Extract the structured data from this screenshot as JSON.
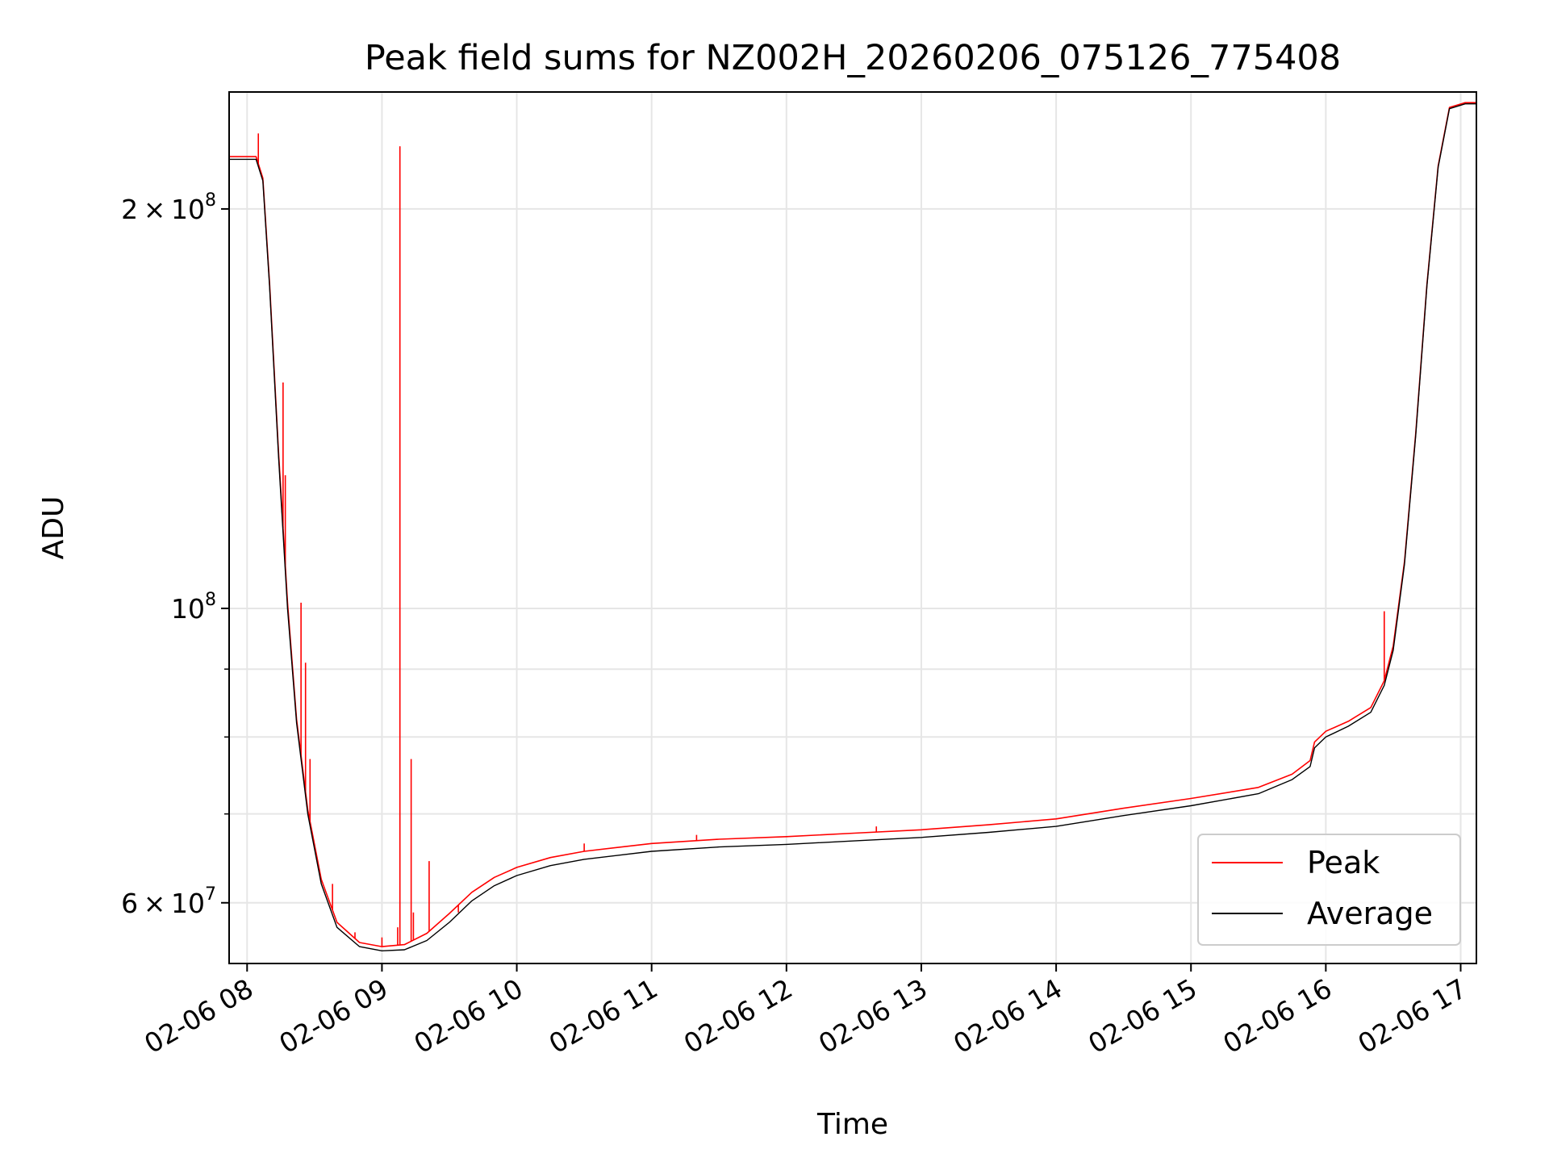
{
  "chart_data": {
    "type": "line",
    "title": "Peak field sums for NZ002H_20260206_075126_775408",
    "xlabel": "Time",
    "ylabel": "ADU",
    "yscale": "log",
    "ylim": [
      54000000,
      245000000
    ],
    "xlim": [
      "02-06 07:52",
      "02-06 17:07"
    ],
    "grid": true,
    "legend_position": "lower-right",
    "x_ticks": [
      {
        "t": "02-06 08:00",
        "label": "02-06 08"
      },
      {
        "t": "02-06 09:00",
        "label": "02-06 09"
      },
      {
        "t": "02-06 10:00",
        "label": "02-06 10"
      },
      {
        "t": "02-06 11:00",
        "label": "02-06 11"
      },
      {
        "t": "02-06 12:00",
        "label": "02-06 12"
      },
      {
        "t": "02-06 13:00",
        "label": "02-06 13"
      },
      {
        "t": "02-06 14:00",
        "label": "02-06 14"
      },
      {
        "t": "02-06 15:00",
        "label": "02-06 15"
      },
      {
        "t": "02-06 16:00",
        "label": "02-06 16"
      },
      {
        "t": "02-06 17:00",
        "label": "02-06 17"
      }
    ],
    "y_ticks": [
      {
        "value": 60000000,
        "mantissa": "6",
        "exponent": "7"
      },
      {
        "value": 100000000,
        "mantissa": "",
        "exponent": "8"
      },
      {
        "value": 200000000,
        "mantissa": "2",
        "exponent": "8"
      }
    ],
    "y_minor_ticks": [
      70000000,
      80000000,
      90000000
    ],
    "series": [
      {
        "name": "Average",
        "color": "#000000",
        "points": [
          [
            "02-06 07:52",
            218000000
          ],
          [
            "02-06 08:04",
            218000000
          ],
          [
            "02-06 08:07",
            210000000
          ],
          [
            "02-06 08:10",
            175000000
          ],
          [
            "02-06 08:14",
            130000000
          ],
          [
            "02-06 08:18",
            100000000
          ],
          [
            "02-06 08:22",
            82000000
          ],
          [
            "02-06 08:27",
            70000000
          ],
          [
            "02-06 08:33",
            62000000
          ],
          [
            "02-06 08:40",
            57500000
          ],
          [
            "02-06 08:50",
            55600000
          ],
          [
            "02-06 09:00",
            55200000
          ],
          [
            "02-06 09:10",
            55300000
          ],
          [
            "02-06 09:20",
            56200000
          ],
          [
            "02-06 09:30",
            58000000
          ],
          [
            "02-06 09:40",
            60200000
          ],
          [
            "02-06 09:50",
            61800000
          ],
          [
            "02-06 10:00",
            62900000
          ],
          [
            "02-06 10:15",
            64000000
          ],
          [
            "02-06 10:30",
            64700000
          ],
          [
            "02-06 11:00",
            65600000
          ],
          [
            "02-06 11:30",
            66100000
          ],
          [
            "02-06 12:00",
            66400000
          ],
          [
            "02-06 12:30",
            66800000
          ],
          [
            "02-06 13:00",
            67200000
          ],
          [
            "02-06 13:30",
            67800000
          ],
          [
            "02-06 14:00",
            68500000
          ],
          [
            "02-06 14:30",
            69800000
          ],
          [
            "02-06 15:00",
            71000000
          ],
          [
            "02-06 15:30",
            72500000
          ],
          [
            "02-06 15:45",
            74300000
          ],
          [
            "02-06 15:53",
            76000000
          ],
          [
            "02-06 15:55",
            78500000
          ],
          [
            "02-06 16:00",
            80000000
          ],
          [
            "02-06 16:10",
            81500000
          ],
          [
            "02-06 16:20",
            83500000
          ],
          [
            "02-06 16:26",
            87500000
          ],
          [
            "02-06 16:30",
            93000000
          ],
          [
            "02-06 16:35",
            108000000
          ],
          [
            "02-06 16:40",
            135000000
          ],
          [
            "02-06 16:45",
            175000000
          ],
          [
            "02-06 16:50",
            215000000
          ],
          [
            "02-06 16:55",
            238000000
          ],
          [
            "02-06 17:02",
            240000000
          ],
          [
            "02-06 17:07",
            240000000
          ]
        ]
      },
      {
        "name": "Peak",
        "color": "#ff0000",
        "points": [
          [
            "02-06 07:52",
            219000000
          ],
          [
            "02-06 08:04",
            219000000
          ],
          [
            "02-06 08:07",
            211000000
          ],
          [
            "02-06 08:10",
            176000000
          ],
          [
            "02-06 08:14",
            131000000
          ],
          [
            "02-06 08:18",
            101000000
          ],
          [
            "02-06 08:22",
            82500000
          ],
          [
            "02-06 08:27",
            70500000
          ],
          [
            "02-06 08:33",
            62500000
          ],
          [
            "02-06 08:40",
            58000000
          ],
          [
            "02-06 08:50",
            56000000
          ],
          [
            "02-06 09:00",
            55600000
          ],
          [
            "02-06 09:10",
            55800000
          ],
          [
            "02-06 09:20",
            56900000
          ],
          [
            "02-06 09:30",
            58900000
          ],
          [
            "02-06 09:40",
            61100000
          ],
          [
            "02-06 09:50",
            62700000
          ],
          [
            "02-06 10:00",
            63800000
          ],
          [
            "02-06 10:15",
            64900000
          ],
          [
            "02-06 10:30",
            65600000
          ],
          [
            "02-06 11:00",
            66500000
          ],
          [
            "02-06 11:30",
            67000000
          ],
          [
            "02-06 12:00",
            67300000
          ],
          [
            "02-06 12:30",
            67700000
          ],
          [
            "02-06 13:00",
            68100000
          ],
          [
            "02-06 13:30",
            68700000
          ],
          [
            "02-06 14:00",
            69400000
          ],
          [
            "02-06 14:30",
            70700000
          ],
          [
            "02-06 15:00",
            71900000
          ],
          [
            "02-06 15:30",
            73300000
          ],
          [
            "02-06 15:45",
            75000000
          ],
          [
            "02-06 15:53",
            76800000
          ],
          [
            "02-06 15:55",
            79300000
          ],
          [
            "02-06 16:00",
            80800000
          ],
          [
            "02-06 16:10",
            82200000
          ],
          [
            "02-06 16:20",
            84200000
          ],
          [
            "02-06 16:26",
            88200000
          ],
          [
            "02-06 16:30",
            93700000
          ],
          [
            "02-06 16:35",
            108500000
          ],
          [
            "02-06 16:40",
            135500000
          ],
          [
            "02-06 16:45",
            175500000
          ],
          [
            "02-06 16:50",
            215500000
          ],
          [
            "02-06 16:55",
            238500000
          ],
          [
            "02-06 17:02",
            240500000
          ],
          [
            "02-06 17:07",
            240500000
          ]
        ],
        "spikes": [
          [
            "02-06 08:05",
            228000000
          ],
          [
            "02-06 08:16",
            148000000
          ],
          [
            "02-06 08:17",
            126000000
          ],
          [
            "02-06 08:24",
            101000000
          ],
          [
            "02-06 08:26",
            91000000
          ],
          [
            "02-06 08:28",
            77000000
          ],
          [
            "02-06 08:38",
            62000000
          ],
          [
            "02-06 08:48",
            57000000
          ],
          [
            "02-06 09:00",
            56500000
          ],
          [
            "02-06 09:07",
            57500000
          ],
          [
            "02-06 09:08",
            223000000
          ],
          [
            "02-06 09:13",
            77000000
          ],
          [
            "02-06 09:14",
            59000000
          ],
          [
            "02-06 09:21",
            64500000
          ],
          [
            "02-06 09:34",
            59000000
          ],
          [
            "02-06 09:46",
            62000000
          ],
          [
            "02-06 10:30",
            66500000
          ],
          [
            "02-06 11:20",
            67500000
          ],
          [
            "02-06 12:40",
            68500000
          ],
          [
            "02-06 14:20",
            70300000
          ],
          [
            "02-06 16:26",
            99500000
          ]
        ]
      }
    ]
  }
}
